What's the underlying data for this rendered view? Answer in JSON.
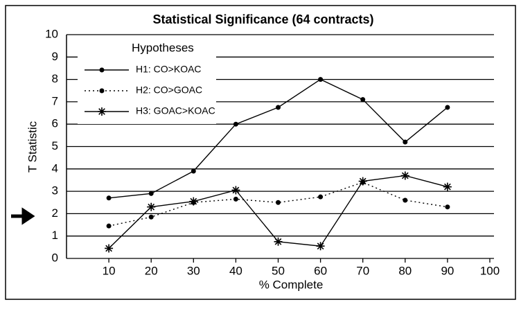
{
  "chart_data": {
    "type": "line",
    "title": "Statistical Significance (64 contracts)",
    "xlabel": "% Complete",
    "ylabel": "T Statistic",
    "legend_title": "Hypotheses",
    "legend": "top-left",
    "grid": true,
    "x": [
      10,
      20,
      30,
      40,
      50,
      60,
      70,
      80,
      90
    ],
    "series": [
      {
        "name": "H1: CO>KOAC",
        "color": "#000000",
        "dash": "solid",
        "marker": "dot",
        "values": [
          2.7,
          2.9,
          3.9,
          6.0,
          6.75,
          8.0,
          7.1,
          5.2,
          6.75
        ]
      },
      {
        "name": "H2: CO>GOAC",
        "color": "#000000",
        "dash": "dotted",
        "marker": "dot",
        "values": [
          1.45,
          1.85,
          2.5,
          2.65,
          2.5,
          2.75,
          3.4,
          2.6,
          2.3
        ]
      },
      {
        "name": "H3: GOAC>KOAC",
        "color": "#000000",
        "dash": "solid",
        "marker": "star",
        "values": [
          0.45,
          2.3,
          2.55,
          3.05,
          0.75,
          0.55,
          3.45,
          3.7,
          3.2
        ]
      }
    ],
    "xlim": [
      0,
      100
    ],
    "xticks": [
      10,
      20,
      30,
      40,
      50,
      60,
      70,
      80,
      90,
      100
    ],
    "ylim": [
      0,
      10
    ],
    "yticks": [
      0,
      1,
      2,
      3,
      4,
      5,
      6,
      7,
      8,
      9,
      10
    ]
  }
}
